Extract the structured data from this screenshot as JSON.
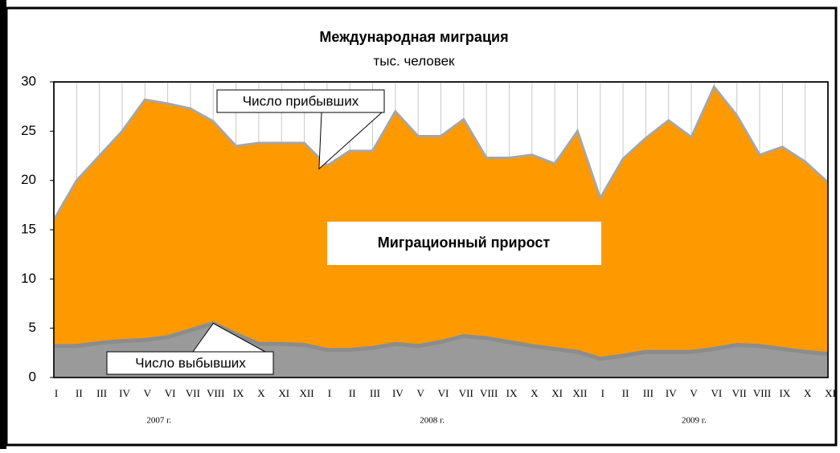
{
  "chart_data": {
    "type": "area",
    "title": "Международная миграция",
    "subtitle": "тыс. человек",
    "categories": [
      "I",
      "II",
      "III",
      "IV",
      "V",
      "VI",
      "VII",
      "VIII",
      "IX",
      "X",
      "XI",
      "XII",
      "I",
      "II",
      "III",
      "IV",
      "V",
      "VI",
      "VII",
      "VIII",
      "IX",
      "X",
      "XI",
      "XII",
      "I",
      "II",
      "III",
      "IV",
      "V",
      "VI",
      "VII",
      "VIII",
      "IX",
      "X",
      "XI"
    ],
    "groups": [
      "2007 г.",
      "2008 г.",
      "2009 г."
    ],
    "series": [
      {
        "name": "Число прибывших",
        "color": "#a6a6a6",
        "values": [
          16,
          20,
          22.5,
          25,
          28.2,
          27.8,
          27.3,
          26,
          23.5,
          23.8,
          23.8,
          23.8,
          21.5,
          23,
          23,
          27,
          24.5,
          24.5,
          26.2,
          22.3,
          22.3,
          22.6,
          21.7,
          25,
          18.2,
          22.2,
          24.3,
          26.1,
          24.4,
          29.5,
          26.6,
          22.6,
          23.4,
          21.9,
          19.8
        ]
      },
      {
        "name": "Число выбывших",
        "color": "#8c8c8c",
        "values": [
          3.2,
          3.2,
          3.5,
          3.7,
          3.8,
          4.1,
          4.8,
          5.5,
          4.4,
          3.4,
          3.4,
          3.3,
          2.8,
          2.8,
          3.0,
          3.4,
          3.2,
          3.6,
          4.2,
          4.0,
          3.6,
          3.2,
          2.9,
          2.6,
          1.9,
          2.2,
          2.6,
          2.6,
          2.6,
          2.9,
          3.3,
          3.2,
          2.9,
          2.6,
          2.4
        ]
      }
    ],
    "fill_label": "Миграционный прирост",
    "fill_color": "#ff9900",
    "ylim": [
      0,
      30
    ],
    "yticks": [
      0,
      5,
      10,
      15,
      20,
      25,
      30
    ],
    "grid": true
  }
}
